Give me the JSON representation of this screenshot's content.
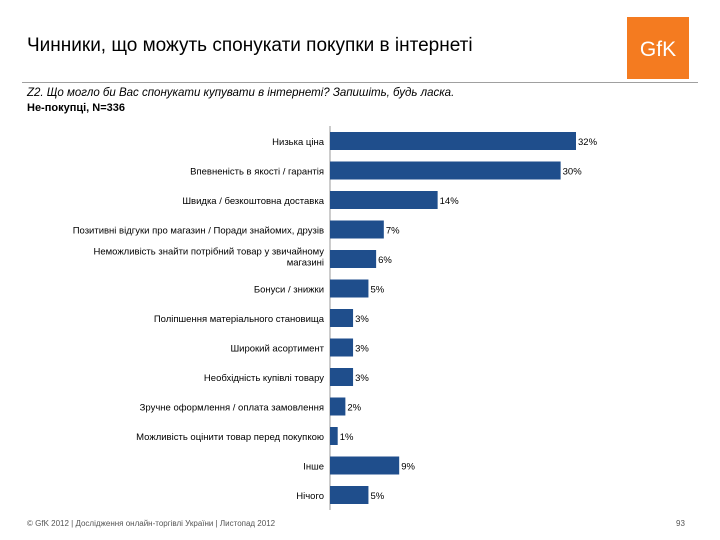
{
  "header": {
    "title": "Чинники, що можуть спонукати покупки в інтернеті",
    "logo_text": "GfK",
    "question": "Z2. Що могло би Вас спонукати купувати в інтернеті? Запишіть, будь ласка.",
    "base": "Не-покупці, N=336"
  },
  "colors": {
    "bar": "#1f4e8c",
    "logo": "#f47b20"
  },
  "chart_data": {
    "type": "bar",
    "orientation": "horizontal",
    "title": "",
    "xlabel": "",
    "ylabel": "",
    "xlim": [
      0,
      32
    ],
    "value_suffix": "%",
    "categories": [
      [
        "Низька ціна"
      ],
      [
        "Впевненість в якості / гарантія"
      ],
      [
        "Швидка / безкоштовна доставка"
      ],
      [
        "Позитивні відгуки про магазин / Поради знайомих, друзів"
      ],
      [
        "Неможливість знайти потрібний товар у звичайному",
        "магазині"
      ],
      [
        "Бонуси / знижки"
      ],
      [
        "Поліпшення матеріального становища"
      ],
      [
        "Широкий асортимент"
      ],
      [
        "Необхідність купівлі товару"
      ],
      [
        "Зручне оформлення / оплата замовлення"
      ],
      [
        "Можливість оцінити товар перед покупкою"
      ],
      [
        "Інше"
      ],
      [
        "Нічого"
      ]
    ],
    "values": [
      32,
      30,
      14,
      7,
      6,
      5,
      3,
      3,
      3,
      2,
      1,
      9,
      5
    ]
  },
  "footer": {
    "copyright": "© GfK 2012 | Дослідження онлайн-торгівлі України | Листопад 2012",
    "page_number": "93"
  }
}
